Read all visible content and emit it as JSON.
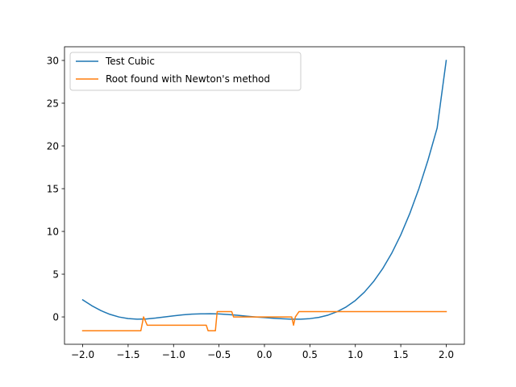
{
  "chart_data": {
    "type": "line",
    "title": "",
    "xlabel": "",
    "ylabel": "",
    "xlim": [
      -2.2,
      2.2
    ],
    "ylim": [
      -3.2,
      31.6
    ],
    "xticks": [
      -2.0,
      -1.5,
      -1.0,
      -0.5,
      0.0,
      0.5,
      1.0,
      1.5,
      2.0
    ],
    "xtick_labels": [
      "−2.0",
      "−1.5",
      "−1.0",
      "−0.5",
      "0.0",
      "0.5",
      "1.0",
      "1.5",
      "2.0"
    ],
    "yticks": [
      0,
      5,
      10,
      15,
      20,
      25,
      30
    ],
    "ytick_labels": [
      "0",
      "5",
      "10",
      "15",
      "20",
      "25",
      "30"
    ],
    "grid": false,
    "legend_position": "top-left",
    "series": [
      {
        "name": "Test Cubic",
        "color": "#1f77b4",
        "x": [
          -2.0,
          -1.9,
          -1.8,
          -1.7,
          -1.6,
          -1.5,
          -1.4,
          -1.3,
          -1.2,
          -1.1,
          -1.0,
          -0.9,
          -0.8,
          -0.7,
          -0.6,
          -0.5,
          -0.4,
          -0.3,
          -0.2,
          -0.1,
          0.0,
          0.1,
          0.2,
          0.3,
          0.4,
          0.5,
          0.6,
          0.7,
          0.8,
          0.9,
          1.0,
          1.1,
          1.2,
          1.3,
          1.4,
          1.5,
          1.6,
          1.7,
          1.8,
          1.9,
          2.0
        ],
        "y": [
          2.0,
          1.31,
          0.74,
          0.3,
          -0.01,
          -0.19,
          -0.27,
          -0.24,
          -0.14,
          0.0,
          0.12,
          0.24,
          0.32,
          0.36,
          0.37,
          0.35,
          0.28,
          0.19,
          0.09,
          0.0,
          -0.08,
          -0.16,
          -0.22,
          -0.26,
          -0.26,
          -0.2,
          -0.05,
          0.21,
          0.61,
          1.17,
          1.92,
          2.9,
          4.13,
          5.63,
          7.44,
          9.6,
          12.12,
          15.03,
          18.36,
          22.09,
          30.0
        ]
      },
      {
        "name": "Root found with Newton's method",
        "color": "#ff7f0e",
        "x": [
          -2.0,
          -1.36,
          -1.36,
          -1.33,
          -1.29,
          -1.29,
          -0.64,
          -0.62,
          -0.54,
          -0.52,
          -0.48,
          -0.36,
          -0.34,
          0.3,
          0.32,
          0.34,
          0.38,
          2.0
        ],
        "y": [
          -1.62,
          -1.62,
          -1.62,
          0.0,
          -0.97,
          -0.97,
          -0.97,
          -1.62,
          -1.62,
          0.62,
          0.62,
          0.62,
          0.0,
          0.0,
          -0.97,
          0.0,
          0.62,
          0.62
        ]
      }
    ]
  }
}
